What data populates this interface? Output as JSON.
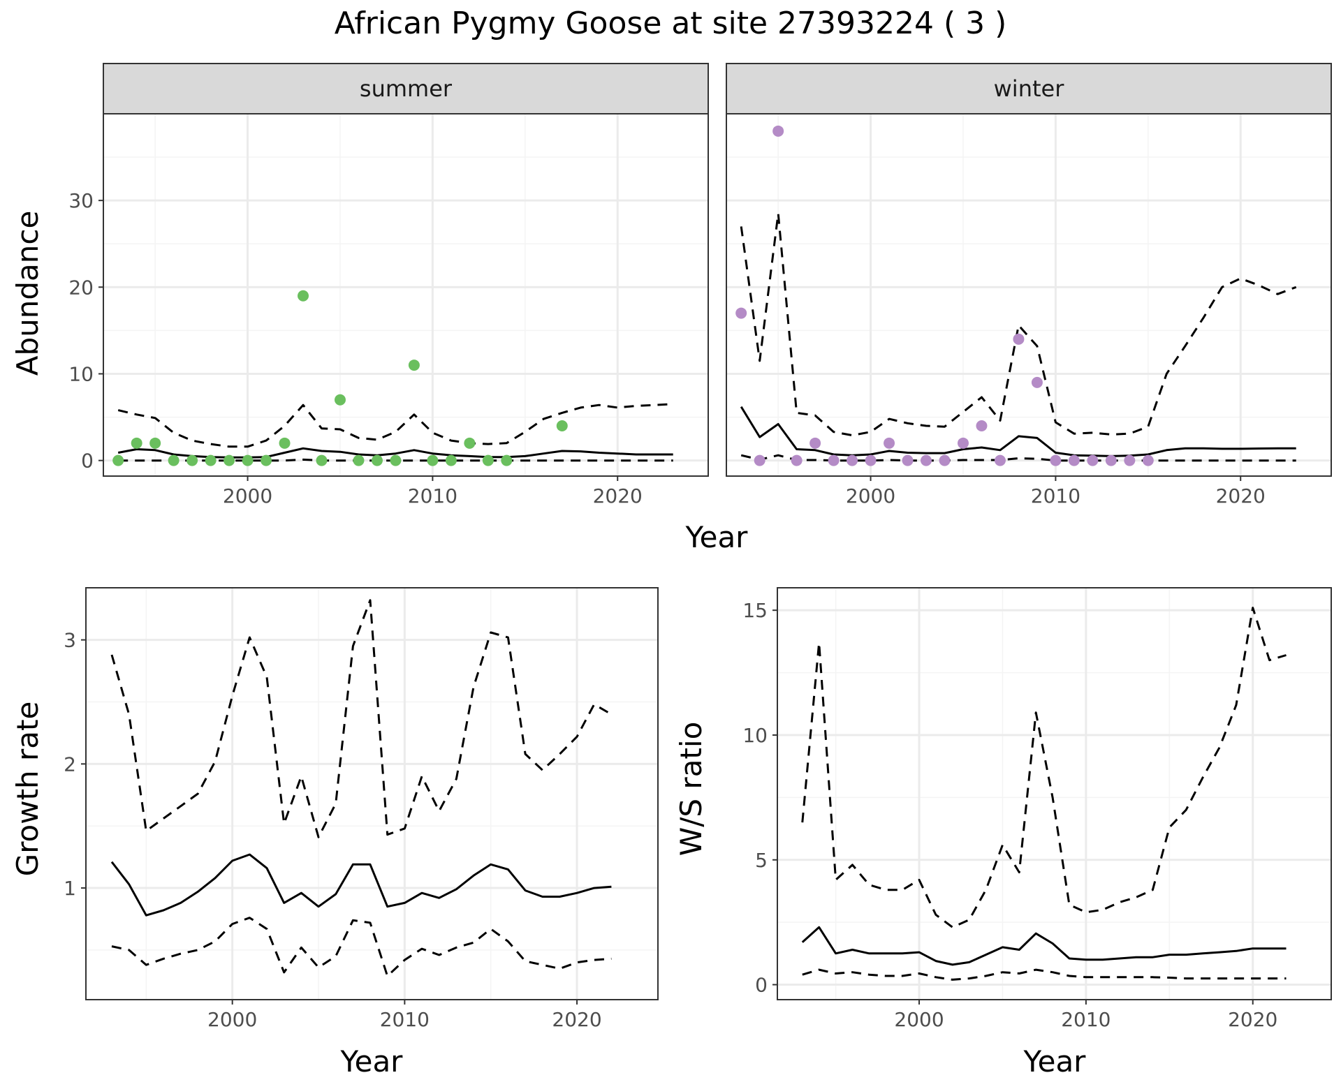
{
  "figure": {
    "title": "African Pygmy Goose at site 27393224 ( 3 )"
  },
  "colors": {
    "summer_points": "#6abf5e",
    "winter_points": "#b48bc6",
    "line": "#000000",
    "grid_major": "#ebebeb",
    "grid_minor": "#f4f4f4",
    "strip_fill": "#d9d9d9",
    "panel_border": "#333333"
  },
  "chart_data": [
    {
      "type": "scatter",
      "title": "African Pygmy Goose at site 27393224 ( 3 )",
      "facets": [
        "summer",
        "winter"
      ],
      "xlabel": "Year",
      "ylabel": "Abundance",
      "xlim": [
        1992.2,
        2024.9
      ],
      "ylim": [
        -1.8,
        40
      ],
      "xticks": [
        2000,
        2010,
        2020
      ],
      "yticks": [
        0,
        10,
        20,
        30
      ],
      "grid": true,
      "panels": [
        {
          "strip": "summer",
          "points": [
            [
              1993,
              0
            ],
            [
              1994,
              2
            ],
            [
              1995,
              2
            ],
            [
              1996,
              0
            ],
            [
              1997,
              0
            ],
            [
              1998,
              0
            ],
            [
              1999,
              0
            ],
            [
              2000,
              0
            ],
            [
              2001,
              0
            ],
            [
              2002,
              2
            ],
            [
              2003,
              19
            ],
            [
              2004,
              0
            ],
            [
              2005,
              7
            ],
            [
              2006,
              0
            ],
            [
              2007,
              0
            ],
            [
              2008,
              0
            ],
            [
              2009,
              11
            ],
            [
              2010,
              0
            ],
            [
              2011,
              0
            ],
            [
              2012,
              2
            ],
            [
              2013,
              0
            ],
            [
              2014,
              0
            ],
            [
              2017,
              4
            ]
          ],
          "series": [
            {
              "style": "solid",
              "x": [
                1993,
                1994,
                1995,
                1996,
                1997,
                1998,
                1999,
                2000,
                2001,
                2002,
                2003,
                2004,
                2005,
                2006,
                2007,
                2008,
                2009,
                2010,
                2011,
                2012,
                2013,
                2014,
                2015,
                2016,
                2017,
                2018,
                2019,
                2020,
                2021,
                2022,
                2023
              ],
              "values": [
                0.9,
                1.3,
                1.2,
                0.7,
                0.5,
                0.4,
                0.35,
                0.35,
                0.4,
                0.9,
                1.4,
                1.1,
                1.0,
                0.7,
                0.6,
                0.8,
                1.2,
                0.8,
                0.6,
                0.5,
                0.4,
                0.4,
                0.5,
                0.8,
                1.1,
                1.05,
                0.9,
                0.8,
                0.7,
                0.7,
                0.7
              ]
            },
            {
              "style": "dashed",
              "x": [
                1993,
                1994,
                1995,
                1996,
                1997,
                1998,
                1999,
                2000,
                2001,
                2002,
                2003,
                2004,
                2005,
                2006,
                2007,
                2008,
                2009,
                2010,
                2011,
                2012,
                2013,
                2014,
                2015,
                2016,
                2017,
                2018,
                2019,
                2020,
                2021,
                2022,
                2023
              ],
              "values": [
                5.8,
                5.3,
                4.9,
                3.2,
                2.3,
                1.9,
                1.6,
                1.6,
                2.3,
                4.0,
                6.4,
                3.7,
                3.6,
                2.6,
                2.4,
                3.3,
                5.3,
                3.2,
                2.3,
                2.0,
                1.9,
                2.0,
                3.3,
                4.8,
                5.5,
                6.1,
                6.4,
                6.1,
                6.3,
                6.4,
                6.5
              ]
            },
            {
              "style": "dashed",
              "x": [
                1993,
                1994,
                1995,
                1996,
                1997,
                1998,
                1999,
                2000,
                2001,
                2002,
                2003,
                2004,
                2005,
                2006,
                2007,
                2008,
                2009,
                2010,
                2011,
                2012,
                2013,
                2014,
                2015,
                2016,
                2017,
                2018,
                2019,
                2020,
                2021,
                2022,
                2023
              ],
              "values": [
                0,
                0,
                0,
                0,
                0,
                0,
                0,
                0,
                0,
                0,
                0.1,
                0,
                0,
                0,
                0,
                0,
                0,
                0,
                0,
                0,
                0,
                0,
                0,
                0,
                0,
                0,
                0,
                0,
                0,
                0,
                0
              ]
            }
          ]
        },
        {
          "strip": "winter",
          "points": [
            [
              1993,
              17
            ],
            [
              1994,
              0
            ],
            [
              1995,
              38
            ],
            [
              1996,
              0
            ],
            [
              1997,
              2
            ],
            [
              1998,
              0
            ],
            [
              1999,
              0
            ],
            [
              2000,
              0
            ],
            [
              2001,
              2
            ],
            [
              2002,
              0
            ],
            [
              2003,
              0
            ],
            [
              2004,
              0
            ],
            [
              2005,
              2
            ],
            [
              2006,
              4
            ],
            [
              2007,
              0
            ],
            [
              2008,
              14
            ],
            [
              2009,
              9
            ],
            [
              2010,
              0
            ],
            [
              2011,
              0
            ],
            [
              2012,
              0
            ],
            [
              2013,
              0
            ],
            [
              2014,
              0
            ],
            [
              2015,
              0
            ]
          ],
          "series": [
            {
              "style": "solid",
              "x": [
                1993,
                1994,
                1995,
                1996,
                1997,
                1998,
                1999,
                2000,
                2001,
                2002,
                2003,
                2004,
                2005,
                2006,
                2007,
                2008,
                2009,
                2010,
                2011,
                2012,
                2013,
                2014,
                2015,
                2016,
                2017,
                2018,
                2019,
                2020,
                2021,
                2022,
                2023
              ],
              "values": [
                6.2,
                2.7,
                4.2,
                1.3,
                1.2,
                0.7,
                0.6,
                0.7,
                1.1,
                0.9,
                0.85,
                0.85,
                1.3,
                1.5,
                1.2,
                2.8,
                2.6,
                0.9,
                0.6,
                0.55,
                0.5,
                0.55,
                0.7,
                1.2,
                1.4,
                1.4,
                1.35,
                1.35,
                1.38,
                1.4,
                1.4
              ]
            },
            {
              "style": "dashed",
              "x": [
                1993,
                1994,
                1995,
                1996,
                1997,
                1998,
                1999,
                2000,
                2001,
                2002,
                2003,
                2004,
                2005,
                2006,
                2007,
                2008,
                2009,
                2010,
                2011,
                2012,
                2013,
                2014,
                2015,
                2016,
                2017,
                2018,
                2019,
                2020,
                2021,
                2022,
                2023
              ],
              "values": [
                27,
                11.5,
                28.5,
                5.5,
                5.2,
                3.3,
                2.9,
                3.3,
                4.8,
                4.3,
                4.0,
                3.9,
                5.6,
                7.3,
                4.6,
                15.6,
                13.2,
                4.4,
                3.1,
                3.2,
                3.0,
                3.1,
                3.9,
                10.0,
                13.2,
                16.5,
                20.0,
                21.0,
                20.2,
                19.2,
                20.0
              ]
            },
            {
              "style": "dashed",
              "x": [
                1993,
                1994,
                1995,
                1996,
                1997,
                1998,
                1999,
                2000,
                2001,
                2002,
                2003,
                2004,
                2005,
                2006,
                2007,
                2008,
                2009,
                2010,
                2011,
                2012,
                2013,
                2014,
                2015,
                2016,
                2017,
                2018,
                2019,
                2020,
                2021,
                2022,
                2023
              ],
              "values": [
                0.6,
                0.1,
                0.6,
                0.05,
                0.05,
                0,
                0,
                0,
                0.05,
                0,
                0,
                0,
                0.05,
                0.05,
                0.05,
                0.25,
                0.2,
                0,
                0,
                0,
                0,
                0,
                0,
                0,
                0,
                0,
                0,
                0,
                0,
                0,
                0
              ]
            }
          ]
        }
      ]
    },
    {
      "type": "line",
      "xlabel": "Year",
      "ylabel": "Growth rate",
      "xlim": [
        1991.5,
        2024.7
      ],
      "ylim": [
        0.1,
        3.42
      ],
      "xticks": [
        2000,
        2010,
        2020
      ],
      "yticks": [
        1,
        2,
        3
      ],
      "grid": true,
      "x": [
        1993,
        1994,
        1995,
        1996,
        1997,
        1998,
        1999,
        2000,
        2001,
        2002,
        2003,
        2004,
        2005,
        2006,
        2007,
        2008,
        2009,
        2010,
        2011,
        2012,
        2013,
        2014,
        2015,
        2016,
        2017,
        2018,
        2019,
        2020,
        2021,
        2022
      ],
      "series": [
        {
          "style": "solid",
          "values": [
            1.21,
            1.03,
            0.78,
            0.82,
            0.88,
            0.97,
            1.08,
            1.22,
            1.27,
            1.16,
            0.88,
            0.96,
            0.85,
            0.95,
            1.19,
            1.19,
            0.85,
            0.88,
            0.96,
            0.92,
            0.99,
            1.1,
            1.19,
            1.15,
            0.98,
            0.93,
            0.93,
            0.96,
            1.0,
            1.01
          ]
        },
        {
          "style": "dashed",
          "values": [
            2.88,
            2.4,
            1.46,
            1.56,
            1.66,
            1.76,
            2.02,
            2.55,
            3.02,
            2.7,
            1.52,
            1.9,
            1.41,
            1.68,
            2.95,
            3.32,
            1.43,
            1.48,
            1.9,
            1.62,
            1.88,
            2.62,
            3.06,
            3.02,
            2.08,
            1.95,
            2.08,
            2.22,
            2.48,
            2.4
          ]
        },
        {
          "style": "dashed",
          "values": [
            0.53,
            0.5,
            0.38,
            0.43,
            0.47,
            0.5,
            0.57,
            0.71,
            0.76,
            0.67,
            0.32,
            0.52,
            0.36,
            0.45,
            0.74,
            0.72,
            0.29,
            0.42,
            0.51,
            0.46,
            0.52,
            0.56,
            0.67,
            0.57,
            0.41,
            0.38,
            0.35,
            0.4,
            0.42,
            0.43
          ]
        }
      ]
    },
    {
      "type": "line",
      "xlabel": "Year",
      "ylabel": "W/S ratio",
      "xlim": [
        1991.5,
        2024.7
      ],
      "ylim": [
        -0.6,
        15.9
      ],
      "xticks": [
        2000,
        2010,
        2020
      ],
      "yticks": [
        0,
        5,
        10,
        15
      ],
      "grid": true,
      "x": [
        1993,
        1994,
        1995,
        1996,
        1997,
        1998,
        1999,
        2000,
        2001,
        2002,
        2003,
        2004,
        2005,
        2006,
        2007,
        2008,
        2009,
        2010,
        2011,
        2012,
        2013,
        2014,
        2015,
        2016,
        2017,
        2018,
        2019,
        2020,
        2021,
        2022
      ],
      "series": [
        {
          "style": "solid",
          "values": [
            1.7,
            2.3,
            1.25,
            1.4,
            1.25,
            1.25,
            1.25,
            1.3,
            0.95,
            0.8,
            0.9,
            1.2,
            1.5,
            1.4,
            2.05,
            1.65,
            1.05,
            1.0,
            1.0,
            1.05,
            1.1,
            1.1,
            1.2,
            1.2,
            1.25,
            1.3,
            1.35,
            1.45,
            1.45,
            1.45
          ]
        },
        {
          "style": "dashed",
          "values": [
            6.5,
            13.7,
            4.2,
            4.8,
            4.0,
            3.8,
            3.8,
            4.2,
            2.8,
            2.3,
            2.6,
            3.8,
            5.6,
            4.5,
            10.9,
            7.5,
            3.2,
            2.9,
            3.0,
            3.3,
            3.5,
            3.8,
            6.3,
            7.0,
            8.3,
            9.5,
            11.2,
            15.1,
            13.0,
            13.2
          ]
        },
        {
          "style": "dashed",
          "values": [
            0.4,
            0.6,
            0.45,
            0.5,
            0.4,
            0.35,
            0.35,
            0.45,
            0.3,
            0.2,
            0.25,
            0.35,
            0.5,
            0.45,
            0.6,
            0.5,
            0.35,
            0.3,
            0.3,
            0.3,
            0.3,
            0.3,
            0.28,
            0.25,
            0.25,
            0.25,
            0.25,
            0.25,
            0.25,
            0.25
          ]
        }
      ]
    }
  ]
}
